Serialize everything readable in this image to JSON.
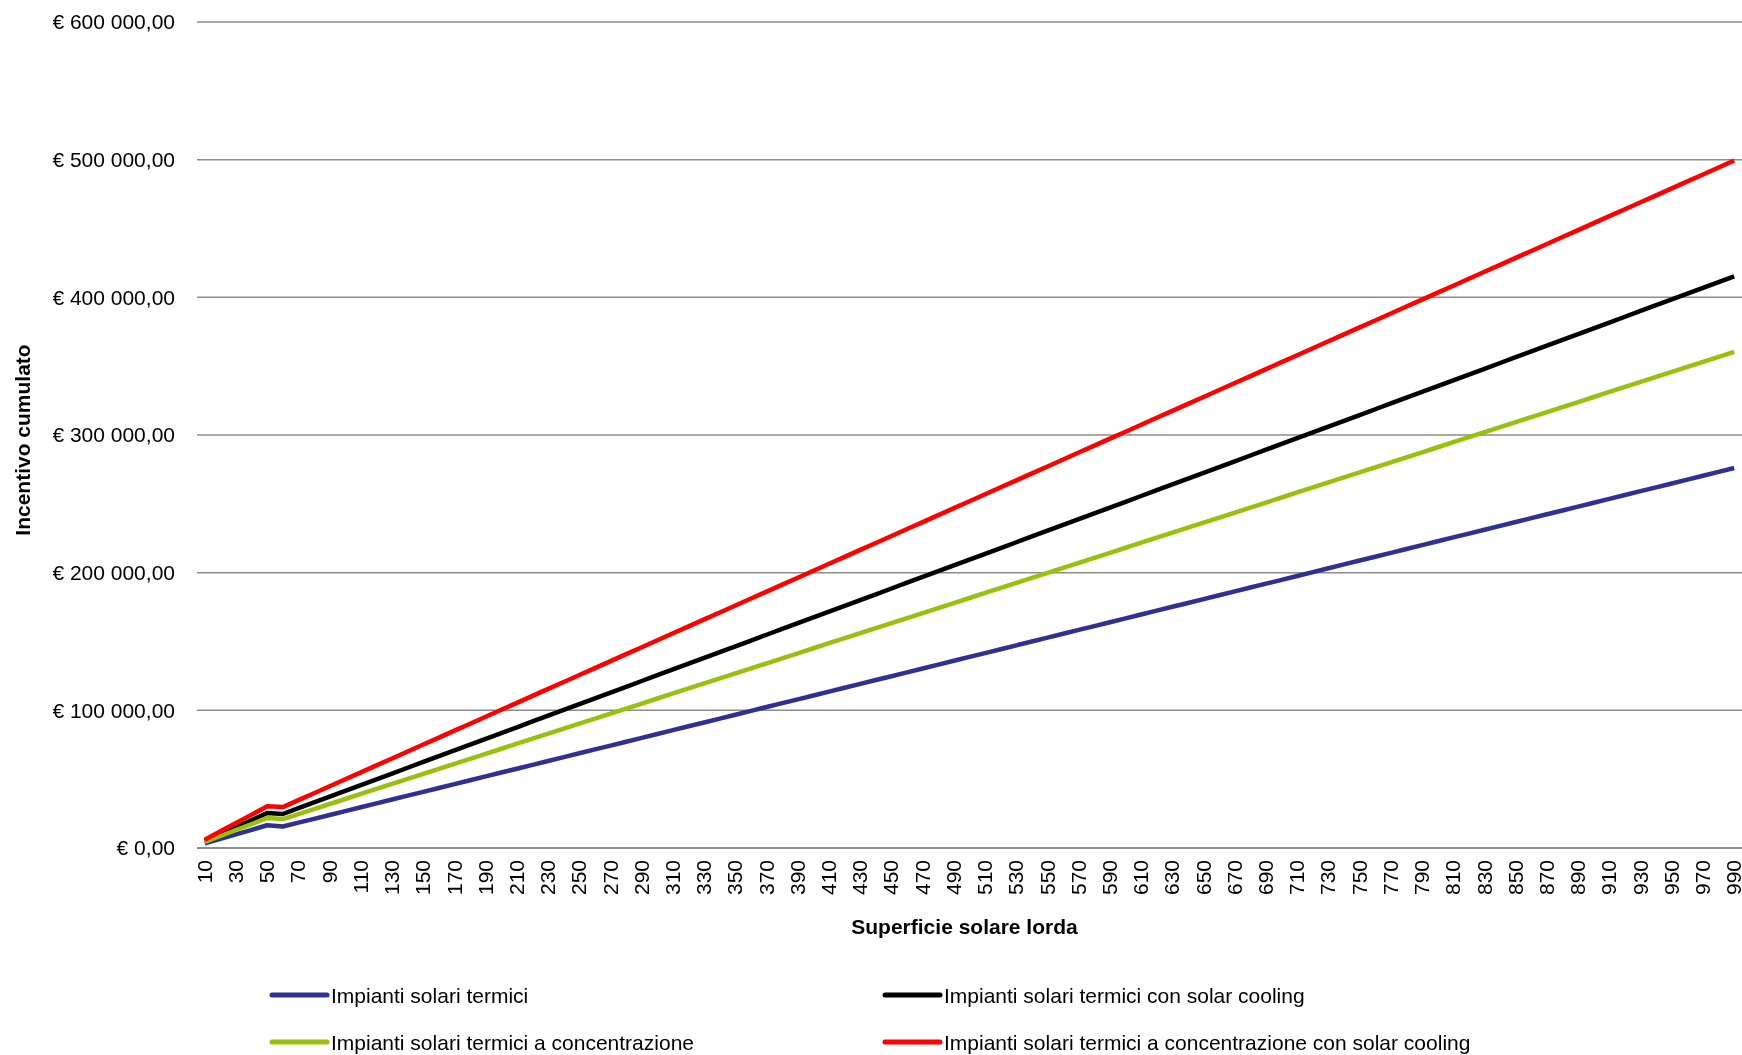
{
  "chart_data": {
    "type": "line",
    "xlabel": "Superficie solare lorda",
    "ylabel": "Incentivo cumulato",
    "categories": [
      "10",
      null,
      "30",
      null,
      "50",
      null,
      "70",
      null,
      "90",
      null,
      "110",
      null,
      "130",
      null,
      "150",
      null,
      "170",
      null,
      "190",
      null,
      "210",
      null,
      "230",
      null,
      "250",
      null,
      "270",
      null,
      "290",
      null,
      "310",
      null,
      "330",
      null,
      "350",
      null,
      "370",
      null,
      "390",
      null,
      "410",
      null,
      "430",
      null,
      "450",
      null,
      "470",
      null,
      "490",
      null,
      "510",
      null,
      "530",
      null,
      "550",
      null,
      "570",
      null,
      "590",
      null,
      "610",
      null,
      "630",
      null,
      "650",
      null,
      "670",
      null,
      "690",
      null,
      "710",
      null,
      "730",
      null,
      "750",
      null,
      "770",
      null,
      "790",
      null,
      "810",
      null,
      "830",
      null,
      "850",
      null,
      "870",
      null,
      "890",
      null,
      "910",
      null,
      "930",
      null,
      "950",
      null,
      "970",
      null,
      "990"
    ],
    "ylim": [
      0,
      600000
    ],
    "yticks": [
      {
        "value": 0,
        "label": "€ 0,00"
      },
      {
        "value": 100000,
        "label": "€ 100 000,00"
      },
      {
        "value": 200000,
        "label": "€ 200 000,00"
      },
      {
        "value": 300000,
        "label": "€ 300 000,00"
      },
      {
        "value": 400000,
        "label": "€ 400 000,00"
      },
      {
        "value": 500000,
        "label": "€ 500 000,00"
      },
      {
        "value": 600000,
        "label": "€ 600 000,00"
      }
    ],
    "grid": "y",
    "legend": "bottom",
    "marker": "none",
    "line_style": "solid",
    "series": [
      {
        "name": "Impianti solari termici",
        "color": "#2e3192",
        "values": [
          3300,
          6600,
          9900,
          13200,
          16500,
          15600,
          18400,
          21200,
          24000,
          26800,
          29600,
          32400,
          35200,
          38000,
          40800,
          43600,
          46400,
          49200,
          52000,
          54800,
          57600,
          60400,
          63200,
          66000,
          68800,
          71600,
          74400,
          77200,
          80000,
          82800,
          85600,
          88400,
          91200,
          94000,
          96800,
          99600,
          102400,
          105200,
          108000,
          110800,
          113600,
          116400,
          119200,
          122000,
          124800,
          127600,
          130400,
          133200,
          136000,
          138800,
          141600,
          144400,
          147200,
          150000,
          152800,
          155600,
          158400,
          161200,
          164000,
          166800,
          169600,
          172400,
          175200,
          178000,
          180800,
          183600,
          186400,
          189200,
          192000,
          194800,
          197600,
          200400,
          203200,
          206000,
          208800,
          211600,
          214400,
          217200,
          220000,
          222800,
          225600,
          228400,
          231200,
          234000,
          236800,
          239600,
          242400,
          245200,
          248000,
          250800,
          253600,
          256400,
          259200,
          262000,
          264800,
          267600,
          270400,
          273200,
          276000
        ]
      },
      {
        "name": "Impianti solari termici con solar cooling",
        "color": "#000000",
        "values": [
          5080,
          10160,
          15240,
          20320,
          25400,
          24700,
          28900,
          33100,
          37300,
          41500,
          45700,
          49900,
          54100,
          58300,
          62500,
          66700,
          70900,
          75100,
          79300,
          83500,
          87700,
          91900,
          96100,
          100300,
          104500,
          108700,
          112900,
          117100,
          121300,
          125500,
          129700,
          133900,
          138100,
          142300,
          146500,
          150700,
          154900,
          159100,
          163300,
          167500,
          171700,
          175900,
          180100,
          184300,
          188500,
          192700,
          196900,
          201100,
          205300,
          209500,
          213700,
          217900,
          222100,
          226300,
          230500,
          234700,
          238900,
          243100,
          247300,
          251500,
          255700,
          259900,
          264100,
          268300,
          272500,
          276700,
          280900,
          285100,
          289300,
          293500,
          297700,
          301900,
          306100,
          310300,
          314500,
          318700,
          322900,
          327100,
          331300,
          335500,
          339700,
          343900,
          348100,
          352300,
          356500,
          360700,
          364900,
          369100,
          373300,
          377500,
          381700,
          385900,
          390100,
          394300,
          398500,
          402700,
          406900,
          411100,
          415300
        ]
      },
      {
        "name": "Impianti solari termici a concentrazione",
        "color": "#99c00f",
        "values": [
          4360,
          8720,
          13080,
          17440,
          21800,
          21000,
          24650,
          28300,
          31950,
          35600,
          39250,
          42900,
          46550,
          50200,
          53850,
          57500,
          61150,
          64800,
          68450,
          72100,
          75750,
          79400,
          83050,
          86700,
          90350,
          94000,
          97650,
          101300,
          104950,
          108600,
          112250,
          115900,
          119550,
          123200,
          126850,
          130500,
          134150,
          137800,
          141450,
          145100,
          148750,
          152400,
          156050,
          159700,
          163350,
          167000,
          170650,
          174300,
          177950,
          181600,
          185250,
          188900,
          192550,
          196200,
          199850,
          203500,
          207150,
          210800,
          214450,
          218100,
          221750,
          225400,
          229050,
          232700,
          236350,
          240000,
          243650,
          247300,
          250950,
          254600,
          258250,
          261900,
          265550,
          269200,
          272850,
          276500,
          280150,
          283800,
          287450,
          291100,
          294750,
          298400,
          302050,
          305700,
          309350,
          313000,
          316650,
          320300,
          323950,
          327600,
          331250,
          334900,
          338550,
          342200,
          345850,
          349500,
          353150,
          356800,
          360450
        ]
      },
      {
        "name": "Impianti solari termici a concentrazione con solar cooling",
        "color": "#ff0000",
        "values": [
          6060,
          12120,
          18180,
          24240,
          30300,
          29700,
          34750,
          39800,
          44850,
          49900,
          54950,
          60000,
          65050,
          70100,
          75150,
          80200,
          85250,
          90300,
          95350,
          100400,
          105450,
          110500,
          115550,
          120600,
          125650,
          130700,
          135750,
          140800,
          145850,
          150900,
          155950,
          161000,
          166050,
          171100,
          176150,
          181200,
          186250,
          191300,
          196350,
          201400,
          206450,
          211500,
          216550,
          221600,
          226650,
          231700,
          236750,
          241800,
          246850,
          251900,
          256950,
          262000,
          267050,
          272100,
          277150,
          282200,
          287250,
          292300,
          297350,
          302400,
          307450,
          312500,
          317550,
          322600,
          327650,
          332700,
          337750,
          342800,
          347850,
          352900,
          357950,
          363000,
          368050,
          373100,
          378150,
          383200,
          388250,
          393300,
          398350,
          403400,
          408450,
          413500,
          418550,
          423600,
          428650,
          433700,
          438750,
          443800,
          448850,
          453900,
          458950,
          464000,
          469050,
          474100,
          479150,
          484200,
          489250,
          494300,
          499350
        ]
      }
    ]
  }
}
